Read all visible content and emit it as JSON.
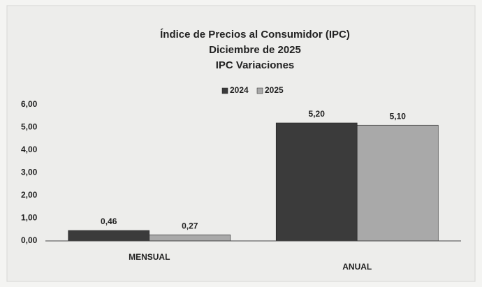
{
  "chart_data": {
    "type": "bar",
    "title": "Índice de Precios al Consumidor (IPC)",
    "subtitle": [
      "Diciembre de 2025",
      "IPC Variaciones"
    ],
    "categories": [
      "MENSUAL",
      "ANUAL"
    ],
    "series": [
      {
        "name": "2024",
        "color": "#3b3b3b",
        "values": [
          0.46,
          5.2
        ],
        "value_labels": [
          "0,46",
          "5,20"
        ]
      },
      {
        "name": "2025",
        "color": "#a9a9a9",
        "values": [
          0.27,
          5.1
        ],
        "value_labels": [
          "0,27",
          "5,10"
        ]
      }
    ],
    "ylim": [
      0,
      6
    ],
    "yticks": [
      {
        "value": 0,
        "label": "0,00"
      },
      {
        "value": 1,
        "label": "1,00"
      },
      {
        "value": 2,
        "label": "2,00"
      },
      {
        "value": 3,
        "label": "3,00"
      },
      {
        "value": 4,
        "label": "4,00"
      },
      {
        "value": 5,
        "label": "5,00"
      },
      {
        "value": 6,
        "label": "6,00"
      }
    ],
    "grid": false,
    "legend": "top"
  }
}
